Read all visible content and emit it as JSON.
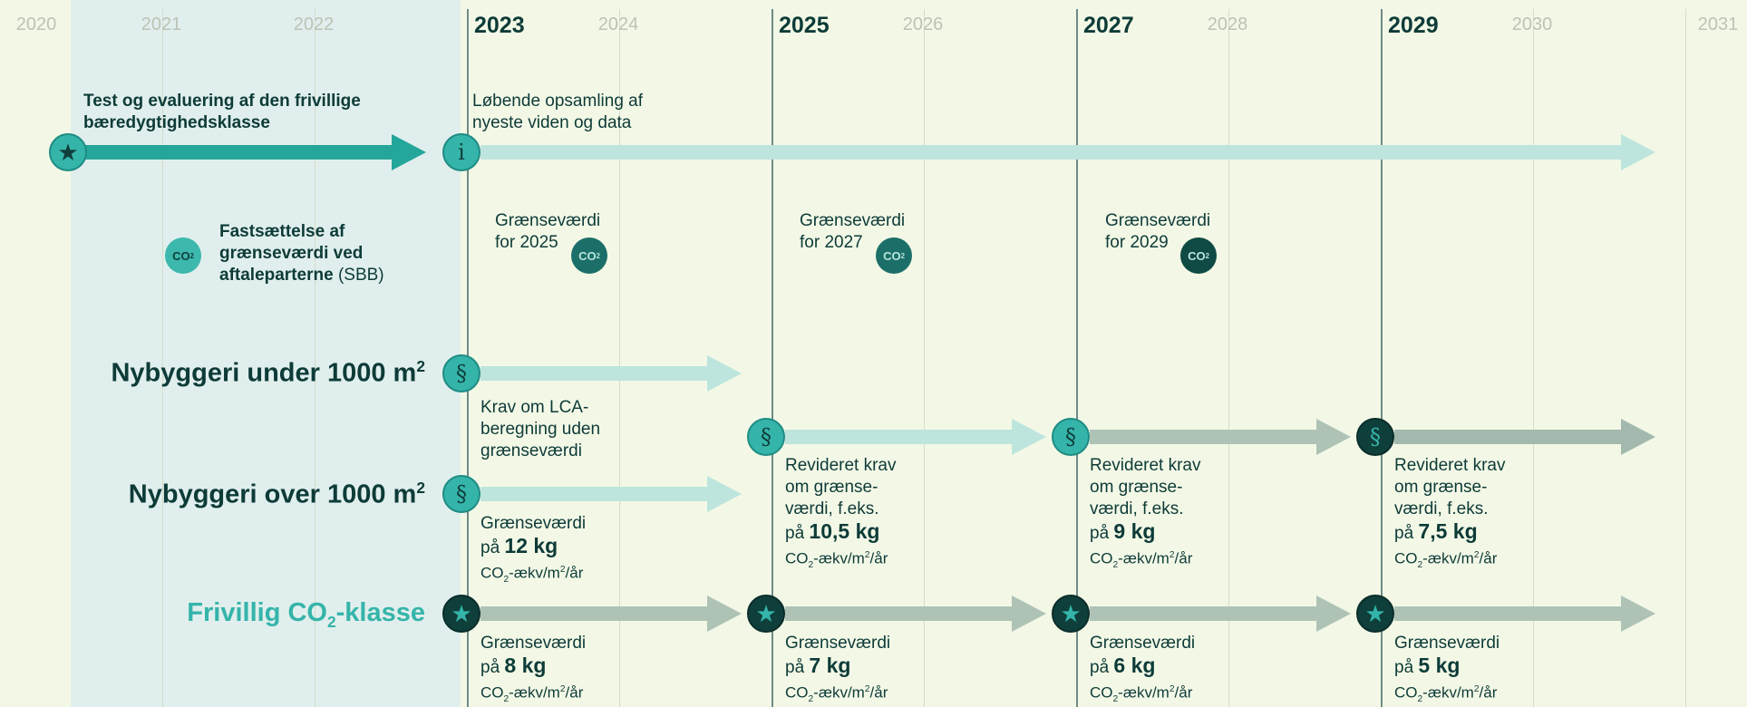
{
  "timeline": {
    "years": [
      "2020",
      "2021",
      "2022",
      "2023",
      "2024",
      "2025",
      "2026",
      "2027",
      "2028",
      "2029",
      "2030",
      "2031"
    ],
    "major_years": [
      "2023",
      "2025",
      "2027",
      "2029"
    ]
  },
  "top": {
    "test_label": "Test og evaluering af den frivillige bæredygtighedsklasse",
    "info_label": "Løbende opsamling af nyeste viden og data",
    "info_glyph": "i"
  },
  "limits": {
    "co2_badge": "CO",
    "co2_sub": "2",
    "fastsaet_bold": "Fastsættelse af grænseværdi ved aftaleparterne",
    "fastsaet_suffix": "(SBB)",
    "items": [
      {
        "l1": "Grænseværdi",
        "l2": "for 2025"
      },
      {
        "l1": "Grænseværdi",
        "l2": "for 2027"
      },
      {
        "l1": "Grænseværdi",
        "l2": "for 2029"
      }
    ]
  },
  "rows": {
    "under_label": "Nybyggeri under 1000 m",
    "under_sup": "2",
    "over_label": "Nybyggeri over 1000 m",
    "over_sup": "2",
    "frivillig_pre": "Frivillig CO",
    "frivillig_sub": "2",
    "frivillig_post": "-klasse",
    "section_glyph": "§",
    "star_glyph": "★"
  },
  "texts": {
    "krav_lca": [
      "Krav om LCA-",
      "beregning uden",
      "grænseværdi"
    ],
    "over_2023": {
      "l1": "Grænseværdi",
      "pa": "på",
      "value": "12 kg"
    },
    "revideret": [
      "Revideret krav",
      "om grænse-",
      "værdi, f.eks."
    ],
    "revideret_values": [
      "10,5 kg",
      "9 kg",
      "7,5 kg"
    ],
    "frivillig": [
      {
        "l1": "Grænseværdi",
        "pa": "på",
        "value": "8 kg"
      },
      {
        "l1": "Grænseværdi",
        "pa": "på",
        "value": "7 kg"
      },
      {
        "l1": "Grænseværdi",
        "pa": "på",
        "value": "6 kg"
      },
      {
        "l1": "Grænseværdi",
        "pa": "på",
        "value": "5 kg"
      }
    ],
    "unit_pre": "CO",
    "unit_sub": "2",
    "unit_mid": "-ækv/m",
    "unit_sup": "2",
    "unit_post": "/år",
    "pa": "på"
  },
  "colors": {
    "teal": "#35b4aa",
    "dark_teal": "#0f3f3b",
    "light_arrow": "#bde5dd",
    "gray_arrow": "#aec3b6",
    "band": "#e0efed",
    "background": "#f3f8e6"
  }
}
